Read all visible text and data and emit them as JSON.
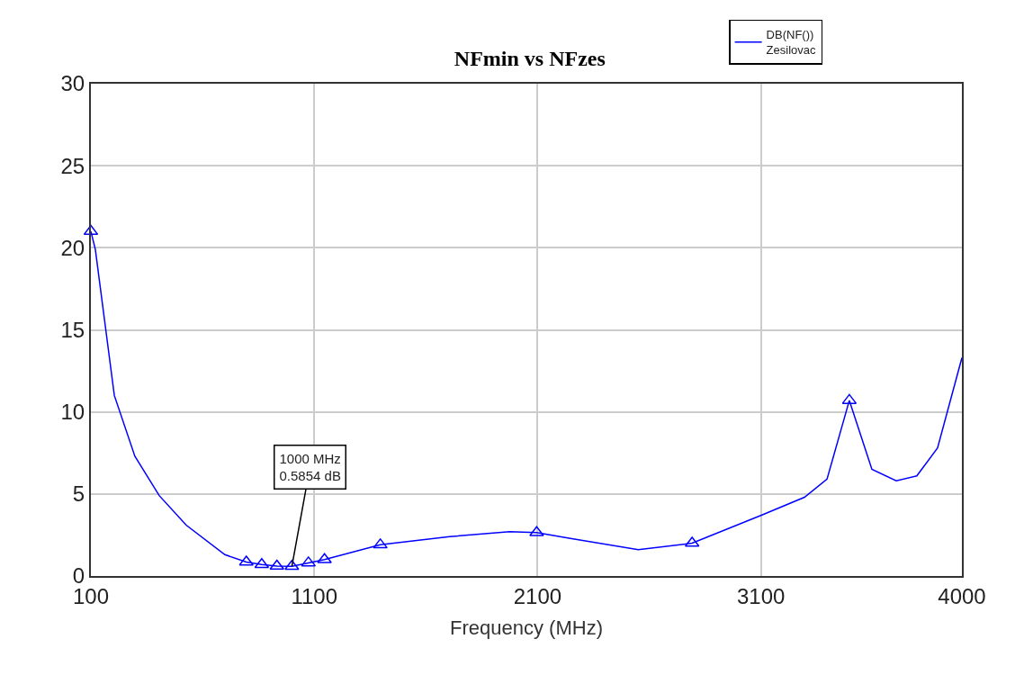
{
  "chart_data": {
    "type": "line",
    "title": "NFmin vs NFzes",
    "xlabel": "Frequency (MHz)",
    "xlim": [
      100,
      4000
    ],
    "xticks": [
      100,
      1100,
      2100,
      3100,
      4000
    ],
    "ylim": [
      0,
      30
    ],
    "yticks": [
      0,
      5,
      10,
      15,
      20,
      25,
      30
    ],
    "grid": true,
    "legend": "top right",
    "series": [
      {
        "name": "DB(NF())\nZesilovac",
        "color": "#0000ff",
        "marker": "none",
        "line_style": "solid",
        "x": [
          100,
          120,
          205,
          297,
          406,
          527,
          700,
          796,
          865,
          933,
          1000,
          1074,
          1146,
          1396,
          1706,
          1975,
          2096,
          2241,
          2551,
          2792,
          3102,
          3295,
          3396,
          3496,
          3597,
          3706,
          3798,
          3891,
          4000
        ],
        "values": [
          21.0,
          19.9,
          11.0,
          7.3,
          4.9,
          3.1,
          1.3,
          0.85,
          0.7,
          0.6,
          0.5854,
          0.8,
          1.0,
          1.9,
          2.4,
          2.7,
          2.65,
          2.3,
          1.6,
          2.0,
          3.7,
          4.8,
          5.9,
          10.7,
          6.5,
          5.8,
          6.1,
          7.8,
          13.3
        ]
      },
      {
        "type": "scatter",
        "color": "#0000ff",
        "marker": "triangle",
        "x": [
          100,
          796,
          865,
          933,
          1000,
          1074,
          1146,
          1396,
          2096,
          2792,
          3496
        ],
        "values": [
          21.0,
          0.85,
          0.7,
          0.6,
          0.5854,
          0.8,
          1.0,
          1.9,
          2.65,
          2.0,
          10.7
        ]
      }
    ],
    "annotations": [
      {
        "text": "1000 MHz\n0.5854 dB",
        "x": 1000,
        "y": 0.5854
      }
    ]
  }
}
